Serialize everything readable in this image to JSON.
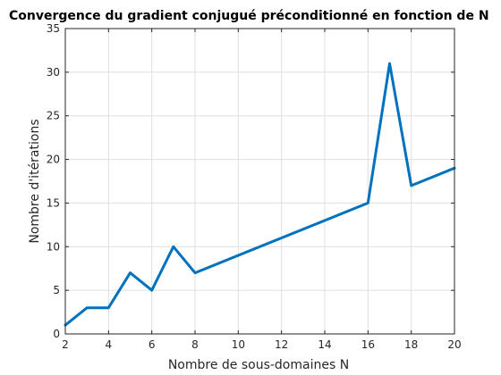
{
  "chart_data": {
    "type": "line",
    "title": "Convergence du gradient conjugué préconditionné en fonction de N",
    "xlabel": "Nombre de sous-domaines N",
    "ylabel": "Nombre d'itérations",
    "xlim": [
      2,
      20
    ],
    "ylim": [
      0,
      35
    ],
    "xticks": [
      2,
      4,
      6,
      8,
      10,
      12,
      14,
      16,
      18,
      20
    ],
    "yticks": [
      0,
      5,
      10,
      15,
      20,
      25,
      30,
      35
    ],
    "grid": true,
    "series": [
      {
        "color": "#0072BD",
        "x": [
          2,
          3,
          4,
          5,
          6,
          7,
          8,
          16,
          17,
          18,
          20
        ],
        "y": [
          1,
          3,
          3,
          7,
          5,
          10,
          7,
          15,
          31,
          17,
          19
        ]
      }
    ]
  }
}
